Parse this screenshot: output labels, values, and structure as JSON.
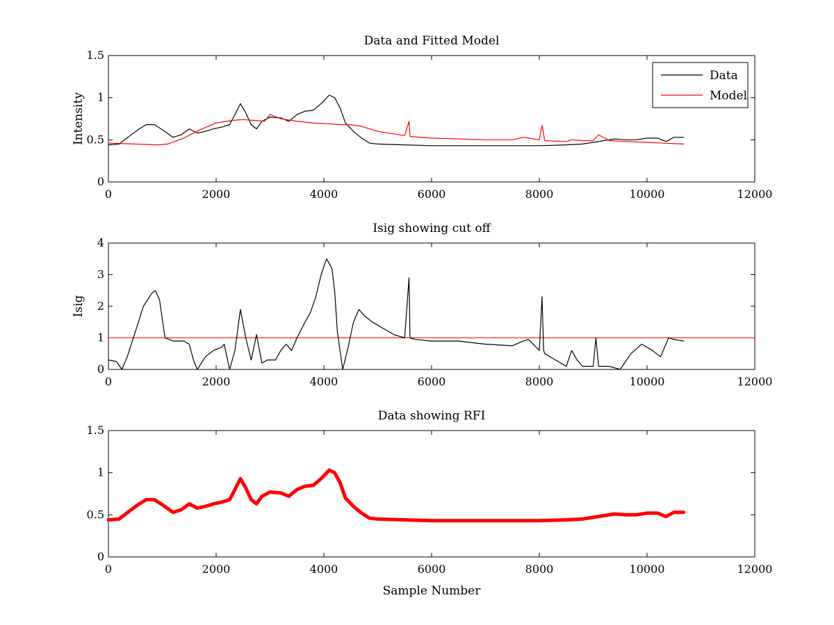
{
  "chart_data": [
    {
      "type": "line",
      "title": "Data and Fitted Model",
      "xlabel": "",
      "ylabel": "Intensity",
      "xlim": [
        0,
        12000
      ],
      "ylim": [
        0,
        1.5
      ],
      "xticks": [
        0,
        2000,
        4000,
        6000,
        8000,
        10000,
        12000
      ],
      "yticks": [
        0,
        0.5,
        1,
        1.5
      ],
      "legend": "top-right",
      "series": [
        {
          "name": "Data",
          "color": "#000000",
          "x": [
            0,
            200,
            400,
            550,
            700,
            850,
            1000,
            1200,
            1350,
            1500,
            1650,
            1800,
            1950,
            2100,
            2250,
            2350,
            2450,
            2550,
            2650,
            2750,
            2850,
            3000,
            3200,
            3350,
            3500,
            3650,
            3800,
            3950,
            4100,
            4200,
            4300,
            4400,
            4550,
            4700,
            4850,
            5000,
            5500,
            6000,
            6500,
            7000,
            7500,
            8000,
            8500,
            8800,
            9000,
            9200,
            9400,
            9600,
            9800,
            10000,
            10200,
            10350,
            10500,
            10680
          ],
          "values": [
            0.44,
            0.45,
            0.55,
            0.62,
            0.68,
            0.68,
            0.62,
            0.53,
            0.56,
            0.63,
            0.58,
            0.6,
            0.63,
            0.65,
            0.68,
            0.8,
            0.93,
            0.82,
            0.68,
            0.63,
            0.72,
            0.77,
            0.76,
            0.72,
            0.8,
            0.84,
            0.85,
            0.93,
            1.03,
            1.0,
            0.88,
            0.7,
            0.6,
            0.52,
            0.46,
            0.45,
            0.44,
            0.43,
            0.43,
            0.43,
            0.43,
            0.43,
            0.44,
            0.45,
            0.47,
            0.49,
            0.51,
            0.5,
            0.5,
            0.52,
            0.52,
            0.48,
            0.53,
            0.53
          ]
        },
        {
          "name": "Model",
          "color": "#ff0000",
          "x": [
            0,
            500,
            900,
            1100,
            1400,
            1700,
            2000,
            2300,
            2500,
            2700,
            2900,
            3000,
            3200,
            3500,
            3800,
            4100,
            4300,
            4500,
            4700,
            5000,
            5500,
            5580,
            5600,
            6000,
            6500,
            7000,
            7500,
            7700,
            8000,
            8050,
            8100,
            8500,
            8600,
            8800,
            9000,
            9100,
            9300,
            9600,
            10000,
            10300,
            10680
          ],
          "values": [
            0.46,
            0.45,
            0.44,
            0.45,
            0.52,
            0.62,
            0.7,
            0.73,
            0.74,
            0.73,
            0.72,
            0.8,
            0.75,
            0.72,
            0.7,
            0.69,
            0.68,
            0.68,
            0.66,
            0.6,
            0.55,
            0.72,
            0.54,
            0.52,
            0.51,
            0.5,
            0.5,
            0.53,
            0.5,
            0.67,
            0.49,
            0.48,
            0.5,
            0.49,
            0.49,
            0.56,
            0.49,
            0.48,
            0.47,
            0.46,
            0.45
          ]
        }
      ]
    },
    {
      "type": "line",
      "title": "Isig showing cut off",
      "xlabel": "",
      "ylabel": "Isig",
      "xlim": [
        0,
        12000
      ],
      "ylim": [
        0,
        4
      ],
      "xticks": [
        0,
        2000,
        4000,
        6000,
        8000,
        10000,
        12000
      ],
      "yticks": [
        0,
        1,
        2,
        3,
        4
      ],
      "cutoff": 1,
      "cutoff_color": "#ff0000",
      "series": [
        {
          "name": "Isig",
          "color": "#000000",
          "x": [
            0,
            150,
            250,
            350,
            500,
            650,
            800,
            870,
            950,
            1050,
            1200,
            1400,
            1500,
            1580,
            1650,
            1800,
            1950,
            2100,
            2150,
            2250,
            2350,
            2450,
            2550,
            2650,
            2750,
            2850,
            2950,
            3100,
            3200,
            3300,
            3400,
            3500,
            3650,
            3750,
            3850,
            3950,
            4050,
            4150,
            4200,
            4250,
            4350,
            4450,
            4550,
            4650,
            4750,
            4900,
            5100,
            5300,
            5500,
            5580,
            5600,
            5700,
            6000,
            6500,
            7000,
            7500,
            7700,
            7800,
            8000,
            8050,
            8080,
            8100,
            8300,
            8500,
            8600,
            8700,
            8800,
            9000,
            9050,
            9100,
            9300,
            9500,
            9700,
            9900,
            10100,
            10250,
            10400,
            10500,
            10680
          ],
          "values": [
            0.3,
            0.25,
            0.0,
            0.4,
            1.2,
            2.0,
            2.4,
            2.5,
            2.2,
            1.0,
            0.9,
            0.9,
            0.8,
            0.3,
            0.0,
            0.4,
            0.6,
            0.7,
            0.8,
            0.0,
            0.6,
            1.9,
            1.0,
            0.3,
            1.1,
            0.2,
            0.3,
            0.3,
            0.6,
            0.8,
            0.6,
            1.0,
            1.5,
            1.8,
            2.3,
            3.0,
            3.5,
            3.2,
            2.5,
            1.2,
            0.0,
            0.7,
            1.5,
            1.9,
            1.7,
            1.5,
            1.3,
            1.1,
            1.0,
            2.9,
            1.0,
            0.95,
            0.9,
            0.9,
            0.8,
            0.75,
            0.9,
            0.95,
            0.6,
            2.3,
            0.6,
            0.5,
            0.3,
            0.1,
            0.6,
            0.3,
            0.1,
            0.1,
            1.0,
            0.1,
            0.1,
            0.0,
            0.5,
            0.8,
            0.6,
            0.4,
            1.0,
            0.95,
            0.9
          ]
        }
      ]
    },
    {
      "type": "line",
      "title": "Data showing RFI",
      "xlabel": "Sample Number",
      "ylabel": "",
      "xlim": [
        0,
        12000
      ],
      "ylim": [
        0,
        1.5
      ],
      "xticks": [
        0,
        2000,
        4000,
        6000,
        8000,
        10000,
        12000
      ],
      "yticks": [
        0,
        0.5,
        1,
        1.5
      ],
      "series": [
        {
          "name": "Data",
          "color": "#ff0000",
          "x": [
            0,
            200,
            400,
            550,
            700,
            850,
            1000,
            1200,
            1350,
            1500,
            1650,
            1800,
            1950,
            2100,
            2250,
            2350,
            2450,
            2550,
            2650,
            2750,
            2850,
            3000,
            3200,
            3350,
            3500,
            3650,
            3800,
            3950,
            4100,
            4200,
            4300,
            4400,
            4550,
            4700,
            4850,
            5000,
            5500,
            6000,
            6500,
            7000,
            7500,
            8000,
            8500,
            8800,
            9000,
            9200,
            9400,
            9600,
            9800,
            10000,
            10200,
            10350,
            10500,
            10680
          ],
          "values": [
            0.44,
            0.45,
            0.55,
            0.62,
            0.68,
            0.68,
            0.62,
            0.53,
            0.56,
            0.63,
            0.58,
            0.6,
            0.63,
            0.65,
            0.68,
            0.8,
            0.93,
            0.82,
            0.68,
            0.63,
            0.72,
            0.77,
            0.76,
            0.72,
            0.8,
            0.84,
            0.85,
            0.93,
            1.03,
            1.0,
            0.88,
            0.7,
            0.6,
            0.52,
            0.46,
            0.45,
            0.44,
            0.43,
            0.43,
            0.43,
            0.43,
            0.43,
            0.44,
            0.45,
            0.47,
            0.49,
            0.51,
            0.5,
            0.5,
            0.52,
            0.52,
            0.48,
            0.53,
            0.53
          ]
        }
      ]
    }
  ]
}
